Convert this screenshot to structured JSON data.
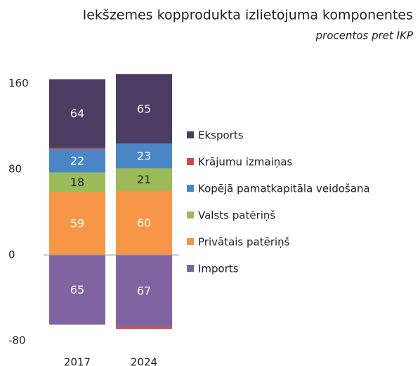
{
  "chart_data": {
    "type": "stacked_bar",
    "title": "Iekšzemes kopprodukta izlietojuma komponentes",
    "subtitle": "procentos pret IKP",
    "categories": [
      "2017",
      "2024"
    ],
    "series": [
      {
        "name": "Eksports",
        "color": "#4b3c63",
        "values": [
          64,
          65
        ]
      },
      {
        "name": "Krājumu izmaiņas",
        "color": "#cf4a47",
        "values": [
          1,
          -2
        ]
      },
      {
        "name": "Kopējā pamatkapitāla veidošana",
        "color": "#4a86c6",
        "values": [
          22,
          23
        ]
      },
      {
        "name": "Valsts patēriņš",
        "color": "#9bbb59",
        "values": [
          18,
          21
        ]
      },
      {
        "name": "Privātais patēriņš",
        "color": "#f79646",
        "values": [
          59,
          60
        ]
      },
      {
        "name": "Imports",
        "color": "#8064a2",
        "values": [
          -65,
          -67
        ],
        "value_labels": [
          "65",
          "67"
        ]
      }
    ],
    "ylim": [
      -80,
      160
    ],
    "yticks": [
      -80,
      0,
      80,
      160
    ]
  }
}
